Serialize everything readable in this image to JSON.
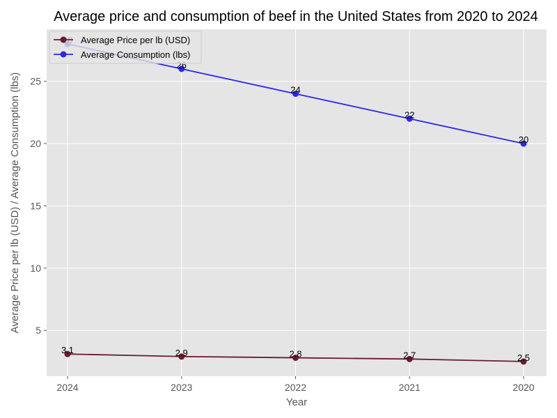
{
  "chart_data": {
    "type": "line",
    "title": "Average price and consumption of beef in the United States from 2020 to 2024",
    "xlabel": "Year",
    "ylabel": "Average Price per lb (USD) / Average Consumption (lbs)",
    "categories": [
      "2024",
      "2023",
      "2022",
      "2021",
      "2020"
    ],
    "series": [
      {
        "name": "Average Price per lb (USD)",
        "color": "#6b1a2e",
        "values": [
          3.1,
          2.9,
          2.8,
          2.7,
          2.5
        ],
        "labels": [
          "3.1",
          "2.9",
          "2.8",
          "2.7",
          "2.5"
        ]
      },
      {
        "name": "Average Consumption (lbs)",
        "color": "#2b26f0",
        "values": [
          28,
          26,
          24,
          22,
          20
        ],
        "labels": [
          "28",
          "26",
          "24",
          "22",
          "20"
        ]
      }
    ],
    "ylim": [
      1.32,
      29.18
    ],
    "yticks": [
      5,
      10,
      15,
      20,
      25
    ],
    "grid": true,
    "legend": "top-left",
    "background": "#e5e5e5"
  }
}
